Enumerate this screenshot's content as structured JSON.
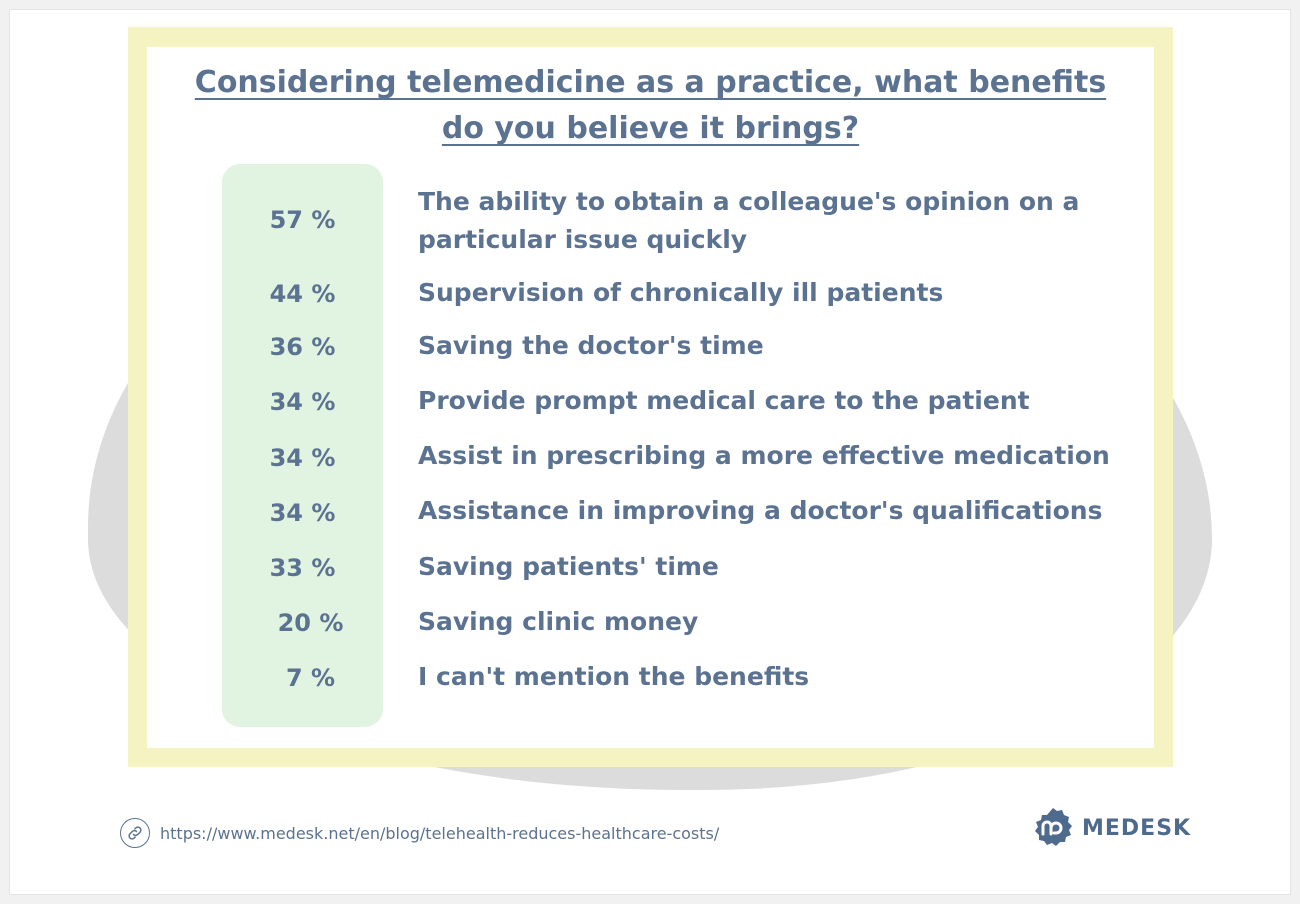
{
  "title_line1": "Considering telemedicine as a practice, what benefits",
  "title_line2": "do you believe it brings?",
  "chart_data": {
    "type": "table",
    "title": "Considering telemedicine as a practice, what benefits do you believe it brings?",
    "rows": [
      {
        "value": "57 %",
        "label_lines": [
          "The ability to obtain a colleague's opinion on a",
          "particular issue quickly"
        ]
      },
      {
        "value": "44 %",
        "label_lines": [
          "Supervision of chronically ill patients"
        ]
      },
      {
        "value": "36 %",
        "label_lines": [
          "Saving the doctor's time"
        ]
      },
      {
        "value": "34 %",
        "label_lines": [
          "Provide prompt medical care to the patient"
        ]
      },
      {
        "value": "34 %",
        "label_lines": [
          "Assist in prescribing a more effective medication"
        ]
      },
      {
        "value": "34 %",
        "label_lines": [
          "Assistance in improving a doctor's qualifications"
        ]
      },
      {
        "value": "33 %",
        "label_lines": [
          "Saving patients' time"
        ]
      },
      {
        "value": "20 %",
        "label_lines": [
          "Saving clinic money"
        ]
      },
      {
        "value": "7 %",
        "label_lines": [
          "I can't mention the benefits"
        ]
      }
    ]
  },
  "footer": {
    "url": "https://www.medesk.net/en/blog/telehealth-reduces-healthcare-costs/",
    "brand": "MEDESK",
    "link_icon": "link-icon",
    "logo_icon": "medesk-logo-icon"
  },
  "colors": {
    "text": "#5b7290",
    "pct_column": "#e1f3e1",
    "frame": "#f6f3c2",
    "blob": "#dcdcdc"
  }
}
